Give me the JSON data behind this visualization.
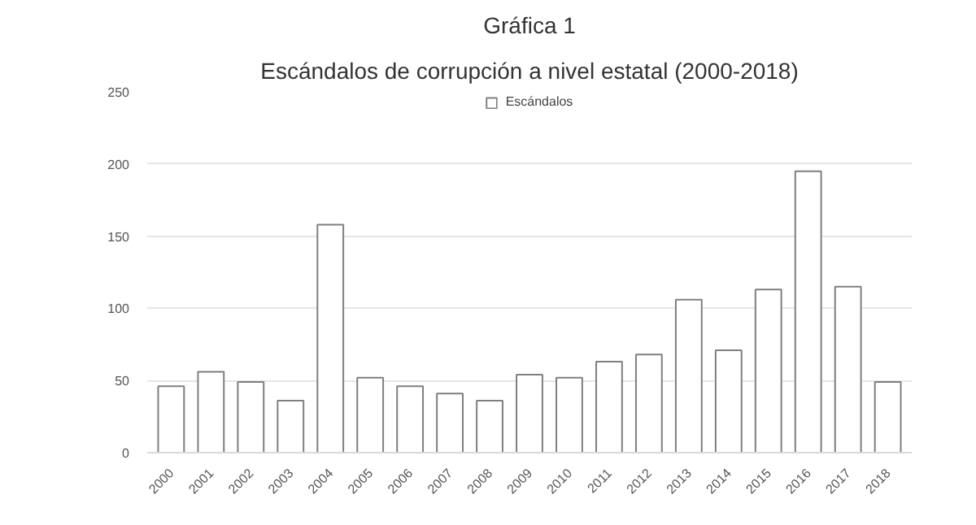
{
  "chart_data": {
    "type": "bar",
    "title": "Gráfica 1",
    "subtitle": "Escándalos de corrupción a nivel estatal (2000-2018)",
    "categories": [
      "2000",
      "2001",
      "2002",
      "2003",
      "2004",
      "2005",
      "2006",
      "2007",
      "2008",
      "2009",
      "2010",
      "2011",
      "2012",
      "2013",
      "2014",
      "2015",
      "2016",
      "2017",
      "2018"
    ],
    "series": [
      {
        "name": "Escándalos",
        "color": "#ffffff",
        "values": [
          46,
          56,
          49,
          36,
          158,
          52,
          46,
          41,
          36,
          54,
          52,
          63,
          68,
          106,
          71,
          113,
          195,
          115,
          49
        ]
      }
    ],
    "ylim": [
      0,
      250
    ],
    "yticks": [
      0,
      50,
      100,
      150,
      200,
      250
    ],
    "grid": "y",
    "legend": "top"
  }
}
